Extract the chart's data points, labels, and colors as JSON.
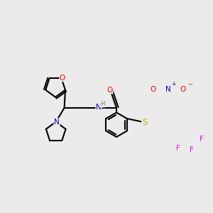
{
  "bg_color": "#ebebeb",
  "bond_color": "#000000",
  "atom_colors": {
    "O": "#ff0000",
    "N": "#0000cc",
    "S": "#ccaa00",
    "F": "#ff00ff",
    "H": "#777777",
    "nitro_O": "#ff0000",
    "nitro_N": "#0000cc"
  },
  "figsize": [
    3.0,
    3.0
  ],
  "dpi": 100
}
